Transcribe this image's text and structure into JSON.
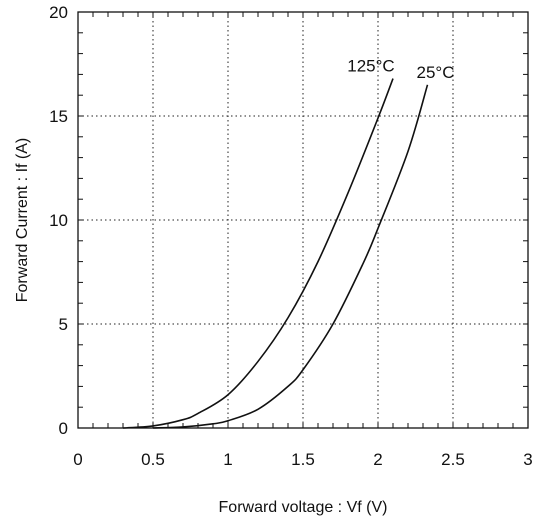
{
  "chart_data": {
    "type": "line",
    "title": "",
    "xlabel": "Forward voltage : Vf (V)",
    "ylabel": "Forward Current : If (A)",
    "xlim": [
      0,
      3
    ],
    "ylim": [
      0,
      20
    ],
    "xticks": [
      "0",
      "0.5",
      "1",
      "1.5",
      "2",
      "2.5",
      "3"
    ],
    "yticks": [
      "0",
      "5",
      "10",
      "15",
      "20"
    ],
    "grid": true,
    "series": [
      {
        "name": "125°C",
        "x": [
          0.3,
          0.5,
          0.7,
          0.8,
          1.0,
          1.2,
          1.4,
          1.6,
          1.8,
          2.0,
          2.1
        ],
        "y": [
          0.0,
          0.1,
          0.4,
          0.7,
          1.6,
          3.2,
          5.3,
          8.0,
          11.3,
          14.9,
          16.8
        ]
      },
      {
        "name": "25°C",
        "x": [
          0.5,
          0.7,
          0.9,
          1.0,
          1.2,
          1.4,
          1.5,
          1.7,
          1.9,
          2.0,
          2.2,
          2.33
        ],
        "y": [
          0.0,
          0.05,
          0.2,
          0.35,
          0.9,
          2.0,
          2.8,
          5.0,
          7.9,
          9.6,
          13.3,
          16.5
        ]
      }
    ]
  }
}
